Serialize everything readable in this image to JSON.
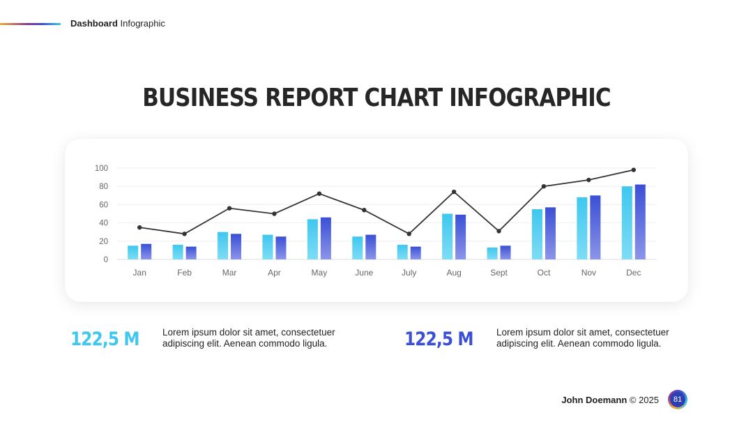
{
  "header": {
    "bold": "Dashboard",
    "rest": " Infographic"
  },
  "title": "BUSINESS REPORT CHART INFOGRAPHIC",
  "stats": [
    {
      "value": "122,5 M",
      "text": "Lorem ipsum dolor sit amet, consectetuer adipiscing elit. Aenean commodo ligula."
    },
    {
      "value": "122,5 M",
      "text": "Lorem ipsum dolor sit amet, consectetuer adipiscing elit. Aenean commodo ligula."
    }
  ],
  "footer": {
    "author": "John Doemann",
    "copyright": " © 2025",
    "page": "81"
  },
  "colors": {
    "cyan": "#3ec7ef",
    "blue": "#3a4fd6",
    "line": "#333333"
  },
  "chart_data": {
    "type": "bar",
    "categories": [
      "Jan",
      "Feb",
      "Mar",
      "Apr",
      "May",
      "June",
      "July",
      "Aug",
      "Sept",
      "Oct",
      "Nov",
      "Dec"
    ],
    "ylim": [
      0,
      100
    ],
    "yticks": [
      0,
      20,
      40,
      60,
      80,
      100
    ],
    "series": [
      {
        "type": "bar",
        "color": "#3ec7ef",
        "values": [
          15,
          16,
          30,
          27,
          44,
          25,
          16,
          50,
          13,
          55,
          68,
          80
        ]
      },
      {
        "type": "bar",
        "color": "#3a4fd6",
        "values": [
          17,
          14,
          28,
          25,
          46,
          27,
          14,
          49,
          15,
          57,
          70,
          82
        ]
      },
      {
        "type": "line",
        "color": "#333333",
        "values": [
          35,
          28,
          56,
          50,
          72,
          54,
          28,
          74,
          31,
          80,
          87,
          98
        ]
      }
    ],
    "grid": true,
    "xlabel": "",
    "ylabel": ""
  }
}
